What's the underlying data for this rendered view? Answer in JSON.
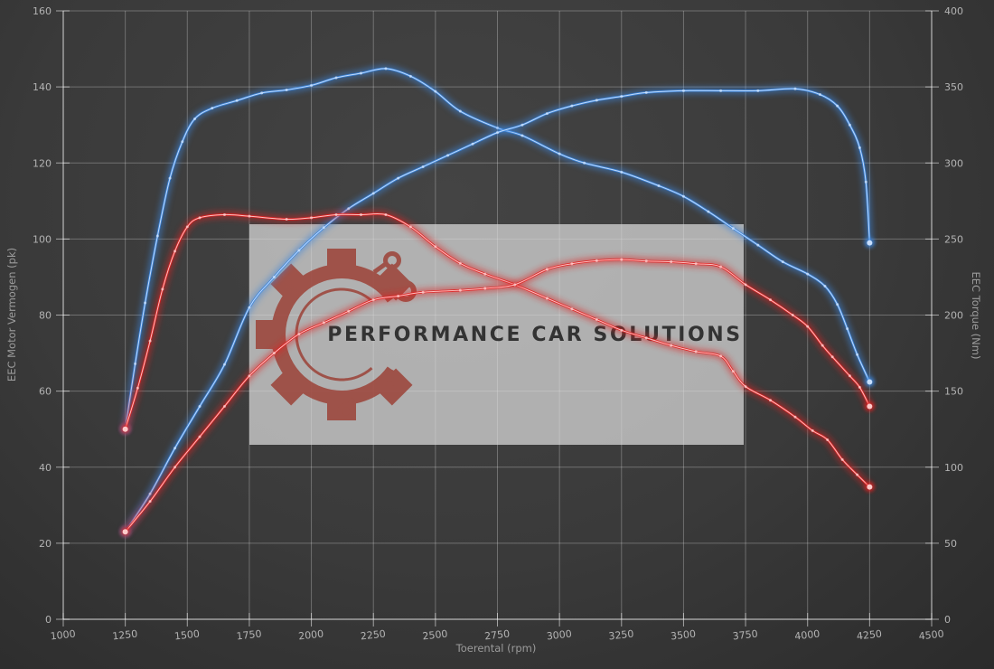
{
  "watermark": {
    "text": "PERFORMANCE CAR SOLUTIONS"
  },
  "chart_data": {
    "type": "line",
    "title": "",
    "xlabel": "Toerental (rpm)",
    "ylabel_left": "EEC Motor Vermogen (pk)",
    "ylabel_right": "EEC Torque (Nm)",
    "xlim": [
      1000,
      4500
    ],
    "ylim_left": [
      0,
      160
    ],
    "ylim_right": [
      0,
      400
    ],
    "x_ticks": [
      1000,
      1250,
      1500,
      1750,
      2000,
      2250,
      2500,
      2750,
      3000,
      3250,
      3500,
      3750,
      4000,
      4250,
      4500
    ],
    "y_left_ticks": [
      0,
      20,
      40,
      60,
      80,
      100,
      120,
      140,
      160
    ],
    "y_right_ticks": [
      0,
      50,
      100,
      150,
      200,
      250,
      300,
      350,
      400
    ],
    "grid": true,
    "legend": "none",
    "colors": {
      "blue": "#3c86dd",
      "blue_core": "#cfe4ff",
      "red": "#e02222",
      "red_core": "#ffd2d2",
      "grid": "rgba(255,255,255,0.27)",
      "watermark_box": "#dcdcdc",
      "logo_red": "#9c4238"
    },
    "series": [
      {
        "name": "blue-torque",
        "axis": "right",
        "color": "blue",
        "points": [
          [
            1250,
            125
          ],
          [
            1290,
            168
          ],
          [
            1330,
            208
          ],
          [
            1380,
            252
          ],
          [
            1430,
            290
          ],
          [
            1480,
            314
          ],
          [
            1530,
            329
          ],
          [
            1600,
            336
          ],
          [
            1700,
            341
          ],
          [
            1800,
            346
          ],
          [
            1900,
            348
          ],
          [
            2000,
            351
          ],
          [
            2100,
            356
          ],
          [
            2200,
            359
          ],
          [
            2300,
            362
          ],
          [
            2400,
            357
          ],
          [
            2500,
            347
          ],
          [
            2600,
            334
          ],
          [
            2750,
            323
          ],
          [
            2850,
            318
          ],
          [
            3000,
            306
          ],
          [
            3100,
            300
          ],
          [
            3250,
            294
          ],
          [
            3400,
            285
          ],
          [
            3500,
            278
          ],
          [
            3600,
            268
          ],
          [
            3700,
            257
          ],
          [
            3800,
            246
          ],
          [
            3900,
            235
          ],
          [
            4000,
            227
          ],
          [
            4070,
            219
          ],
          [
            4120,
            207
          ],
          [
            4160,
            191
          ],
          [
            4200,
            174
          ],
          [
            4250,
            156
          ]
        ]
      },
      {
        "name": "blue-power",
        "axis": "left",
        "color": "blue",
        "points": [
          [
            1250,
            23
          ],
          [
            1350,
            33
          ],
          [
            1450,
            45
          ],
          [
            1550,
            56
          ],
          [
            1650,
            67
          ],
          [
            1750,
            82
          ],
          [
            1850,
            90
          ],
          [
            1950,
            97
          ],
          [
            2050,
            103
          ],
          [
            2150,
            108
          ],
          [
            2250,
            112
          ],
          [
            2350,
            116
          ],
          [
            2450,
            119
          ],
          [
            2550,
            122
          ],
          [
            2650,
            125
          ],
          [
            2750,
            128
          ],
          [
            2850,
            130
          ],
          [
            2950,
            133
          ],
          [
            3050,
            135
          ],
          [
            3150,
            136.5
          ],
          [
            3250,
            137.5
          ],
          [
            3350,
            138.5
          ],
          [
            3500,
            139
          ],
          [
            3650,
            139
          ],
          [
            3800,
            139
          ],
          [
            3950,
            139.5
          ],
          [
            4050,
            138
          ],
          [
            4120,
            135
          ],
          [
            4170,
            130
          ],
          [
            4210,
            124
          ],
          [
            4235,
            115
          ],
          [
            4250,
            99
          ]
        ]
      },
      {
        "name": "red-torque",
        "axis": "right",
        "color": "red",
        "points": [
          [
            1250,
            125
          ],
          [
            1300,
            152
          ],
          [
            1350,
            183
          ],
          [
            1400,
            217
          ],
          [
            1450,
            242
          ],
          [
            1500,
            258
          ],
          [
            1550,
            264
          ],
          [
            1650,
            266
          ],
          [
            1750,
            265
          ],
          [
            1900,
            263
          ],
          [
            2000,
            264
          ],
          [
            2100,
            266
          ],
          [
            2200,
            266
          ],
          [
            2300,
            266
          ],
          [
            2400,
            258
          ],
          [
            2500,
            245
          ],
          [
            2600,
            234
          ],
          [
            2700,
            227
          ],
          [
            2820,
            220
          ],
          [
            2950,
            211
          ],
          [
            3050,
            204
          ],
          [
            3150,
            197
          ],
          [
            3250,
            190
          ],
          [
            3350,
            185
          ],
          [
            3450,
            180
          ],
          [
            3550,
            176
          ],
          [
            3650,
            173
          ],
          [
            3700,
            163
          ],
          [
            3750,
            153
          ],
          [
            3850,
            144
          ],
          [
            3950,
            133
          ],
          [
            4020,
            124
          ],
          [
            4080,
            118
          ],
          [
            4140,
            105
          ],
          [
            4200,
            95
          ],
          [
            4250,
            87
          ]
        ]
      },
      {
        "name": "red-power",
        "axis": "left",
        "color": "red",
        "points": [
          [
            1250,
            23
          ],
          [
            1350,
            31
          ],
          [
            1450,
            40
          ],
          [
            1550,
            48
          ],
          [
            1650,
            56
          ],
          [
            1750,
            64
          ],
          [
            1850,
            70
          ],
          [
            1950,
            75
          ],
          [
            2050,
            78
          ],
          [
            2150,
            81
          ],
          [
            2250,
            84
          ],
          [
            2350,
            85
          ],
          [
            2450,
            86
          ],
          [
            2600,
            86.5
          ],
          [
            2700,
            87
          ],
          [
            2820,
            88
          ],
          [
            2950,
            92
          ],
          [
            3050,
            93.5
          ],
          [
            3150,
            94.3
          ],
          [
            3250,
            94.6
          ],
          [
            3350,
            94.2
          ],
          [
            3450,
            94
          ],
          [
            3550,
            93.5
          ],
          [
            3650,
            92.7
          ],
          [
            3750,
            88
          ],
          [
            3850,
            84
          ],
          [
            3940,
            80
          ],
          [
            4000,
            77
          ],
          [
            4060,
            72
          ],
          [
            4100,
            69
          ],
          [
            4170,
            64
          ],
          [
            4210,
            61
          ],
          [
            4250,
            56
          ]
        ]
      }
    ]
  }
}
